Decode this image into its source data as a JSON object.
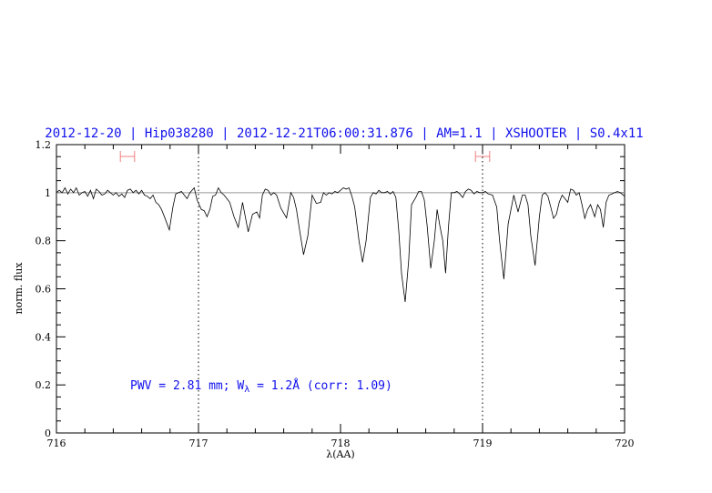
{
  "chart_data": {
    "type": "line",
    "title": "2012-12-20 | Hip038280 | 2012-12-21T06:00:31.876 | AM=1.1 | XSHOOTER | S0.4x11",
    "xlabel": "λ(AA)",
    "ylabel": "norm. flux",
    "xlim": [
      716,
      720
    ],
    "ylim": [
      0,
      1.2
    ],
    "x_ticks": [
      "716",
      "717",
      "718",
      "719",
      "720"
    ],
    "y_ticks": [
      "0",
      "0.2",
      "0.4",
      "0.6",
      "0.8",
      "1",
      "1.2"
    ],
    "grid": false,
    "reference_line_y": 1.0,
    "vertical_dotted_lines_x": [
      717,
      719
    ],
    "range_markers": [
      [
        716.45,
        716.55
      ],
      [
        718.95,
        719.05
      ]
    ],
    "annotation": {
      "prefix": "PWV = 2.81 mm; W",
      "sub": "λ",
      "suffix": " = 1.2Å (corr: 1.09)"
    },
    "colors": {
      "title": "#1010ee",
      "annotation": "#1010ee",
      "markers": "#f08080",
      "reference_line": "#e09090",
      "spectrum": "#000000"
    },
    "series": [
      {
        "x": [
          716.0,
          716.02,
          716.04,
          716.06,
          716.08,
          716.1,
          716.12,
          716.14,
          716.16,
          716.18,
          716.2,
          716.22,
          716.24,
          716.26,
          716.28,
          716.3,
          716.32,
          716.34,
          716.36,
          716.38,
          716.4,
          716.42,
          716.44,
          716.46,
          716.48,
          716.5,
          716.52,
          716.54,
          716.56,
          716.58,
          716.6,
          716.62,
          716.64,
          716.66,
          716.68,
          716.7,
          716.72,
          716.74,
          716.76,
          716.795,
          716.82,
          716.84,
          716.86,
          716.88,
          716.9,
          716.92,
          716.94,
          716.97,
          716.99,
          717.02,
          717.04,
          717.06,
          717.08,
          717.1,
          717.12,
          717.14,
          717.16,
          717.18,
          717.2,
          717.22,
          717.25,
          717.28,
          717.31,
          717.35,
          717.38,
          717.41,
          717.43,
          717.45,
          717.47,
          717.49,
          717.51,
          717.53,
          717.55,
          717.58,
          717.62,
          717.65,
          717.67,
          717.69,
          717.71,
          717.74,
          717.77,
          717.8,
          717.83,
          717.86,
          717.88,
          717.9,
          717.92,
          717.94,
          717.96,
          717.98,
          718.0,
          718.02,
          718.04,
          718.06,
          718.08,
          718.1,
          718.13,
          718.155,
          718.18,
          718.21,
          718.23,
          718.25,
          718.27,
          718.29,
          718.31,
          718.33,
          718.35,
          718.37,
          718.39,
          718.41,
          718.43,
          718.455,
          718.48,
          718.5,
          718.53,
          718.55,
          718.57,
          718.59,
          718.61,
          718.635,
          718.66,
          718.68,
          718.7,
          718.72,
          718.74,
          718.76,
          718.78,
          718.8,
          718.82,
          718.84,
          718.86,
          718.88,
          718.9,
          718.92,
          718.94,
          718.96,
          718.98,
          719.0,
          719.02,
          719.04,
          719.07,
          719.1,
          719.12,
          719.15,
          719.18,
          719.22,
          719.25,
          719.28,
          719.3,
          719.32,
          719.34,
          719.37,
          719.4,
          719.42,
          719.44,
          719.46,
          719.48,
          719.5,
          719.52,
          719.54,
          719.56,
          719.58,
          719.6,
          719.62,
          719.64,
          719.66,
          719.68,
          719.7,
          719.72,
          719.74,
          719.76,
          719.79,
          719.81,
          719.83,
          719.85,
          719.87,
          719.89,
          719.91,
          719.93,
          719.95,
          719.97,
          720.0
        ],
        "y": [
          1.0,
          1.01,
          1.0,
          1.02,
          0.995,
          1.015,
          1.0,
          1.02,
          0.99,
          1.0,
          1.005,
          0.985,
          1.01,
          0.975,
          1.015,
          1.005,
          0.99,
          0.995,
          1.01,
          1.0,
          0.99,
          1.0,
          0.985,
          0.995,
          0.98,
          1.01,
          1.015,
          1.0,
          1.01,
          0.995,
          1.01,
          0.99,
          0.985,
          0.975,
          0.99,
          0.96,
          0.95,
          0.93,
          0.9,
          0.845,
          0.94,
          0.995,
          1.0,
          1.005,
          0.99,
          0.975,
          1.0,
          1.02,
          0.97,
          0.93,
          0.925,
          0.9,
          0.93,
          0.985,
          0.99,
          1.02,
          1.0,
          0.99,
          0.975,
          0.96,
          0.9,
          0.856,
          0.96,
          0.837,
          0.91,
          0.92,
          0.895,
          0.99,
          1.015,
          1.01,
          0.99,
          1.0,
          0.99,
          0.935,
          0.895,
          1.0,
          0.98,
          0.93,
          0.85,
          0.742,
          0.82,
          0.99,
          0.955,
          0.96,
          1.0,
          0.99,
          1.0,
          0.995,
          1.005,
          1.0,
          1.01,
          1.02,
          1.015,
          1.02,
          0.985,
          0.94,
          0.8,
          0.71,
          0.8,
          0.98,
          1.0,
          0.995,
          1.01,
          1.0,
          1.0,
          1.005,
          0.995,
          1.005,
          0.98,
          0.84,
          0.66,
          0.545,
          0.72,
          0.95,
          0.98,
          1.005,
          1.005,
          0.97,
          0.86,
          0.685,
          0.8,
          0.93,
          0.86,
          0.8,
          0.665,
          0.86,
          1.0,
          1.0,
          1.005,
          0.995,
          0.98,
          1.005,
          1.015,
          1.01,
          0.995,
          1.005,
          1.0,
          1.0,
          1.005,
          0.995,
          0.99,
          0.94,
          0.8,
          0.64,
          0.87,
          0.99,
          0.92,
          0.99,
          0.99,
          0.95,
          0.82,
          0.697,
          0.9,
          0.99,
          1.0,
          0.985,
          0.94,
          0.893,
          0.91,
          0.96,
          0.99,
          0.975,
          0.96,
          1.015,
          1.01,
          0.99,
          1.0,
          0.95,
          0.893,
          0.93,
          0.95,
          0.9,
          0.95,
          0.93,
          0.855,
          0.96,
          0.99,
          0.995,
          1.0,
          1.005,
          1.0,
          0.985
        ]
      }
    ]
  }
}
